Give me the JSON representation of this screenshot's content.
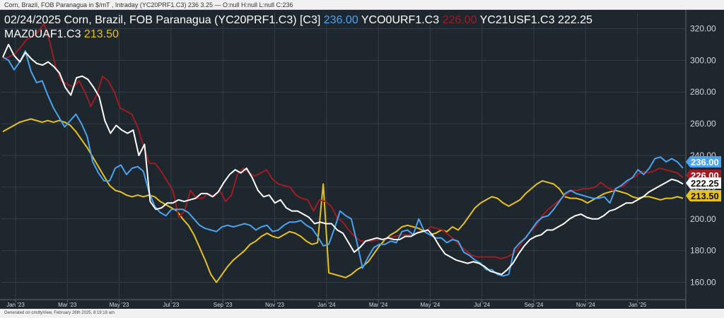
{
  "header": {
    "info_line": "Corn, Brazil, FOB Paranagua in $/mT , Intraday (YC20PRF1.C3) 236 3.25 — O:null H:null L:null C:236"
  },
  "footer": {
    "generated": "Generated on cmdtyView, February 26th 2025, 8:19:18 am"
  },
  "chart_data": {
    "type": "line",
    "title_line1_prefix": "02/24/2025 Corn, Brazil, FOB Paranagua (YC20PRF1.C3) [C3]",
    "x_ticks": [
      "Jan '23",
      "Mar '23",
      "May '23",
      "Jul '23",
      "Sep '23",
      "Nov '23",
      "Jan '24",
      "Mar '24",
      "May '24",
      "Jul '24",
      "Sep '24",
      "Nov '24",
      "Jan '25"
    ],
    "ylim": [
      150,
      330
    ],
    "y_ticks": [
      "160.00",
      "180.00",
      "200.00",
      "220.00",
      "240.00",
      "260.00",
      "280.00",
      "300.00",
      "320.00"
    ],
    "grid": true,
    "series": [
      {
        "name": "YC20PRF1.C3",
        "label": "",
        "value_label": "236.00",
        "color": "#4aa3f0",
        "values": [
          302,
          300,
          294,
          299,
          306,
          293,
          286,
          287,
          278,
          270,
          264,
          258,
          262,
          266,
          260,
          252,
          236,
          229,
          224,
          224,
          232,
          234,
          228,
          232,
          233,
          230,
          217,
          208,
          204,
          202,
          206,
          206,
          206,
          204,
          200,
          196,
          194,
          193,
          192,
          195,
          196,
          195,
          196,
          197,
          196,
          193,
          195,
          196,
          192,
          193,
          196,
          198,
          198,
          199,
          196,
          194,
          189,
          183,
          184,
          194,
          205,
          202,
          200,
          185,
          169,
          176,
          182,
          184,
          184,
          186,
          185,
          192,
          193,
          190,
          200,
          192,
          190,
          188,
          188,
          185,
          187,
          186,
          179,
          177,
          174,
          172,
          168,
          168,
          165,
          164,
          165,
          181,
          185,
          188,
          193,
          198,
          201,
          202,
          206,
          211,
          216,
          218,
          216,
          215,
          214,
          213,
          213,
          214,
          210,
          219,
          221,
          224,
          226,
          231,
          228,
          232,
          238,
          239,
          236,
          238,
          236,
          232
        ]
      },
      {
        "name": "YCO0URF1.C3",
        "label": "YCO0URF1.C3",
        "value_label": "226.00",
        "color": "#9e1c22",
        "values": [
          301,
          302,
          304,
          308,
          313,
          315,
          318,
          323,
          312,
          296,
          287,
          285,
          283,
          287,
          280,
          271,
          278,
          290,
          287,
          280,
          270,
          268,
          266,
          258,
          246,
          235,
          235,
          230,
          224,
          218,
          201,
          205,
          218,
          213,
          213,
          216,
          214,
          218,
          211,
          215,
          228,
          232,
          229,
          227,
          229,
          231,
          225,
          222,
          221,
          220,
          215,
          213,
          212,
          205,
          212,
          211,
          208,
          201,
          198,
          193,
          189,
          186,
          186,
          186,
          187,
          187,
          188,
          189,
          190,
          190,
          190,
          192,
          192,
          195,
          194,
          193,
          190,
          187,
          183,
          180,
          177,
          176,
          176,
          176,
          176,
          175,
          176,
          178,
          182,
          188,
          192,
          196,
          202,
          206,
          209,
          212,
          215,
          218,
          218,
          219,
          219,
          220,
          223,
          220,
          218,
          220,
          221,
          225,
          227,
          230,
          229,
          230,
          232,
          231,
          230,
          229,
          226
        ]
      },
      {
        "name": "YC21USF1.C3",
        "label": "YC21USF1.C3",
        "value_label": "222.25",
        "color": "#ffffff",
        "values": [
          302,
          310,
          303,
          299,
          305,
          301,
          298,
          297,
          299,
          296,
          292,
          283,
          278,
          289,
          290,
          288,
          283,
          277,
          262,
          254,
          259,
          256,
          254,
          256,
          240,
          247,
          211,
          206,
          207,
          210,
          210,
          212,
          211,
          212,
          213,
          216,
          216,
          214,
          217,
          223,
          228,
          231,
          229,
          232,
          226,
          218,
          214,
          215,
          210,
          212,
          207,
          205,
          205,
          203,
          201,
          197,
          198,
          197,
          197,
          193,
          191,
          185,
          179,
          182,
          186,
          187,
          188,
          187,
          188,
          187,
          187,
          189,
          189,
          191,
          192,
          193,
          189,
          183,
          178,
          176,
          174,
          173,
          172,
          173,
          172,
          170,
          167,
          166,
          165,
          168,
          172,
          178,
          183,
          187,
          189,
          190,
          193,
          193,
          195,
          197,
          200,
          202,
          203,
          201,
          200,
          200,
          202,
          205,
          206,
          208,
          210,
          210,
          212,
          214,
          217,
          219,
          221,
          223,
          225,
          224,
          222
        ]
      },
      {
        "name": "MAZ0UAF1.C3",
        "label": "MAZ0UAF1.C3",
        "value_label": "213.50",
        "color": "#e8c21c",
        "values": [
          255,
          257,
          259,
          261,
          262,
          263,
          262,
          261,
          262,
          261,
          262,
          261,
          259,
          255,
          250,
          245,
          239,
          233,
          227,
          221,
          218,
          217,
          215,
          214,
          215,
          214,
          215,
          214,
          211,
          209,
          207,
          205,
          200,
          196,
          190,
          182,
          174,
          165,
          160,
          165,
          170,
          174,
          177,
          180,
          184,
          186,
          189,
          191,
          189,
          188,
          190,
          192,
          191,
          189,
          186,
          184,
          185,
          222,
          166,
          165,
          164,
          163,
          165,
          168,
          170,
          173,
          178,
          183,
          187,
          190,
          192,
          195,
          196,
          195,
          194,
          192,
          190,
          191,
          193,
          192,
          195,
          193,
          197,
          202,
          207,
          210,
          212,
          214,
          213,
          210,
          208,
          210,
          212,
          216,
          219,
          222,
          224,
          223,
          222,
          219,
          214,
          213,
          213,
          212,
          210,
          212,
          214,
          216,
          217,
          218,
          217,
          216,
          214,
          213,
          214,
          214,
          213,
          212,
          213,
          213,
          214,
          213
        ]
      }
    ],
    "value_label_colors": {
      "YC20PRF1.C3": "#4aa3f0",
      "YCO0URF1.C3": "#9e1c22",
      "YC21USF1.C3": "#ffffff",
      "MAZ0UAF1.C3": "#e8c21c"
    }
  }
}
